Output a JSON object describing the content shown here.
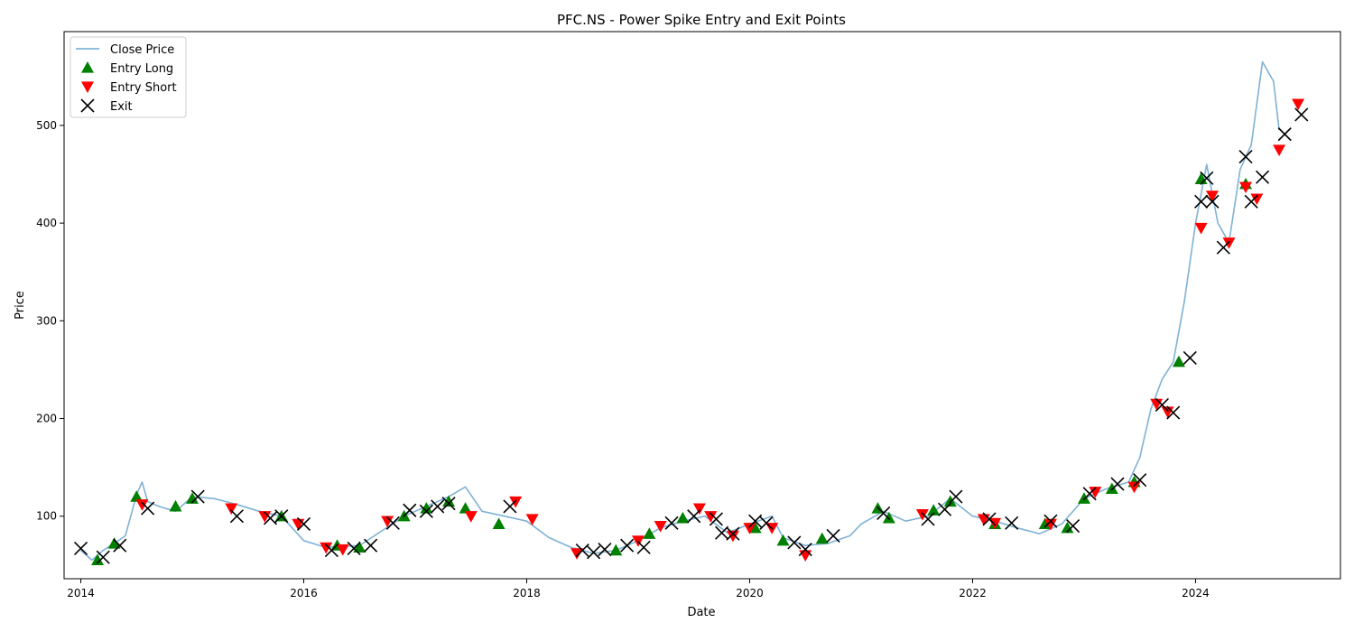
{
  "chart_data": {
    "type": "line",
    "title": "PFC.NS - Power Spike Entry and Exit Points",
    "xlabel": "Date",
    "ylabel": "Price",
    "xlim": [
      2013.85,
      2025.3
    ],
    "ylim": [
      36,
      596
    ],
    "x_ticks": [
      2014,
      2016,
      2018,
      2020,
      2022,
      2024
    ],
    "y_ticks": [
      100,
      200,
      300,
      400,
      500
    ],
    "grid": false,
    "legend_position": "upper left",
    "colors": {
      "close": "#7fb2d5",
      "entry_long": "#008000",
      "entry_short": "#ff0000",
      "exit": "#000000"
    },
    "series": [
      {
        "name": "Close Price",
        "kind": "line",
        "points": [
          [
            2014.0,
            65
          ],
          [
            2014.1,
            55
          ],
          [
            2014.2,
            65
          ],
          [
            2014.3,
            72
          ],
          [
            2014.4,
            80
          ],
          [
            2014.5,
            122
          ],
          [
            2014.55,
            135
          ],
          [
            2014.6,
            115
          ],
          [
            2014.7,
            110
          ],
          [
            2014.85,
            105
          ],
          [
            2015.0,
            120
          ],
          [
            2015.2,
            118
          ],
          [
            2015.4,
            112
          ],
          [
            2015.6,
            105
          ],
          [
            2015.8,
            100
          ],
          [
            2016.0,
            75
          ],
          [
            2016.2,
            68
          ],
          [
            2016.5,
            70
          ],
          [
            2016.7,
            85
          ],
          [
            2016.9,
            100
          ],
          [
            2017.1,
            110
          ],
          [
            2017.3,
            120
          ],
          [
            2017.45,
            130
          ],
          [
            2017.6,
            105
          ],
          [
            2017.8,
            100
          ],
          [
            2018.0,
            95
          ],
          [
            2018.2,
            78
          ],
          [
            2018.4,
            68
          ],
          [
            2018.6,
            62
          ],
          [
            2018.8,
            65
          ],
          [
            2019.0,
            75
          ],
          [
            2019.2,
            88
          ],
          [
            2019.4,
            95
          ],
          [
            2019.6,
            100
          ],
          [
            2019.8,
            83
          ],
          [
            2020.0,
            92
          ],
          [
            2020.2,
            100
          ],
          [
            2020.3,
            78
          ],
          [
            2020.5,
            70
          ],
          [
            2020.7,
            72
          ],
          [
            2020.9,
            80
          ],
          [
            2021.0,
            92
          ],
          [
            2021.2,
            105
          ],
          [
            2021.4,
            95
          ],
          [
            2021.6,
            100
          ],
          [
            2021.8,
            118
          ],
          [
            2022.0,
            100
          ],
          [
            2022.2,
            95
          ],
          [
            2022.4,
            88
          ],
          [
            2022.6,
            82
          ],
          [
            2022.8,
            92
          ],
          [
            2023.0,
            118
          ],
          [
            2023.2,
            128
          ],
          [
            2023.4,
            135
          ],
          [
            2023.5,
            160
          ],
          [
            2023.6,
            210
          ],
          [
            2023.7,
            240
          ],
          [
            2023.8,
            258
          ],
          [
            2023.9,
            320
          ],
          [
            2024.0,
            400
          ],
          [
            2024.1,
            460
          ],
          [
            2024.2,
            400
          ],
          [
            2024.3,
            380
          ],
          [
            2024.4,
            455
          ],
          [
            2024.5,
            480
          ],
          [
            2024.6,
            565
          ],
          [
            2024.7,
            545
          ],
          [
            2024.75,
            495
          ]
        ]
      },
      {
        "name": "Entry Long",
        "kind": "marker",
        "points": [
          [
            2014.15,
            55
          ],
          [
            2014.3,
            72
          ],
          [
            2014.5,
            120
          ],
          [
            2014.85,
            110
          ],
          [
            2015.0,
            118
          ],
          [
            2015.8,
            100
          ],
          [
            2016.3,
            70
          ],
          [
            2016.5,
            68
          ],
          [
            2016.9,
            100
          ],
          [
            2017.1,
            108
          ],
          [
            2017.3,
            115
          ],
          [
            2017.45,
            108
          ],
          [
            2017.75,
            92
          ],
          [
            2018.8,
            65
          ],
          [
            2019.1,
            82
          ],
          [
            2019.4,
            98
          ],
          [
            2020.05,
            88
          ],
          [
            2020.3,
            75
          ],
          [
            2020.65,
            77
          ],
          [
            2021.15,
            108
          ],
          [
            2021.25,
            98
          ],
          [
            2021.65,
            106
          ],
          [
            2021.8,
            115
          ],
          [
            2022.2,
            92
          ],
          [
            2022.65,
            92
          ],
          [
            2022.85,
            88
          ],
          [
            2023.0,
            118
          ],
          [
            2023.25,
            128
          ],
          [
            2023.45,
            135
          ],
          [
            2023.85,
            258
          ],
          [
            2024.05,
            445
          ],
          [
            2024.45,
            440
          ]
        ]
      },
      {
        "name": "Entry Short",
        "kind": "marker",
        "points": [
          [
            2014.55,
            112
          ],
          [
            2015.35,
            108
          ],
          [
            2015.65,
            100
          ],
          [
            2015.95,
            92
          ],
          [
            2016.2,
            68
          ],
          [
            2016.35,
            66
          ],
          [
            2016.75,
            95
          ],
          [
            2017.5,
            100
          ],
          [
            2017.9,
            115
          ],
          [
            2018.05,
            97
          ],
          [
            2018.45,
            62
          ],
          [
            2019.0,
            75
          ],
          [
            2019.2,
            90
          ],
          [
            2019.55,
            108
          ],
          [
            2019.65,
            100
          ],
          [
            2019.85,
            80
          ],
          [
            2020.0,
            88
          ],
          [
            2020.2,
            88
          ],
          [
            2020.5,
            60
          ],
          [
            2021.55,
            102
          ],
          [
            2022.1,
            97
          ],
          [
            2022.2,
            93
          ],
          [
            2022.7,
            92
          ],
          [
            2023.1,
            125
          ],
          [
            2023.45,
            130
          ],
          [
            2023.65,
            215
          ],
          [
            2023.75,
            207
          ],
          [
            2024.05,
            395
          ],
          [
            2024.15,
            428
          ],
          [
            2024.3,
            380
          ],
          [
            2024.45,
            437
          ],
          [
            2024.55,
            425
          ],
          [
            2024.75,
            475
          ],
          [
            2024.92,
            522
          ]
        ]
      },
      {
        "name": "Exit",
        "kind": "marker",
        "points": [
          [
            2014.0,
            67
          ],
          [
            2014.2,
            58
          ],
          [
            2014.35,
            70
          ],
          [
            2014.6,
            108
          ],
          [
            2015.05,
            120
          ],
          [
            2015.4,
            100
          ],
          [
            2015.7,
            98
          ],
          [
            2015.8,
            100
          ],
          [
            2016.0,
            92
          ],
          [
            2016.25,
            65
          ],
          [
            2016.45,
            67
          ],
          [
            2016.6,
            70
          ],
          [
            2016.8,
            93
          ],
          [
            2016.95,
            106
          ],
          [
            2017.1,
            105
          ],
          [
            2017.2,
            110
          ],
          [
            2017.3,
            113
          ],
          [
            2017.85,
            110
          ],
          [
            2018.5,
            65
          ],
          [
            2018.6,
            63
          ],
          [
            2018.7,
            66
          ],
          [
            2018.9,
            70
          ],
          [
            2019.05,
            68
          ],
          [
            2019.3,
            93
          ],
          [
            2019.5,
            100
          ],
          [
            2019.7,
            97
          ],
          [
            2019.75,
            83
          ],
          [
            2019.85,
            82
          ],
          [
            2020.05,
            95
          ],
          [
            2020.15,
            93
          ],
          [
            2020.4,
            73
          ],
          [
            2020.5,
            66
          ],
          [
            2020.75,
            80
          ],
          [
            2021.2,
            103
          ],
          [
            2021.6,
            97
          ],
          [
            2021.75,
            107
          ],
          [
            2021.85,
            120
          ],
          [
            2022.15,
            97
          ],
          [
            2022.35,
            93
          ],
          [
            2022.7,
            95
          ],
          [
            2022.9,
            90
          ],
          [
            2023.05,
            123
          ],
          [
            2023.3,
            133
          ],
          [
            2023.5,
            137
          ],
          [
            2023.7,
            214
          ],
          [
            2023.8,
            206
          ],
          [
            2023.95,
            262
          ],
          [
            2024.05,
            422
          ],
          [
            2024.1,
            446
          ],
          [
            2024.15,
            422
          ],
          [
            2024.25,
            375
          ],
          [
            2024.45,
            468
          ],
          [
            2024.5,
            422
          ],
          [
            2024.6,
            447
          ],
          [
            2024.8,
            491
          ],
          [
            2024.95,
            511
          ]
        ]
      }
    ]
  }
}
